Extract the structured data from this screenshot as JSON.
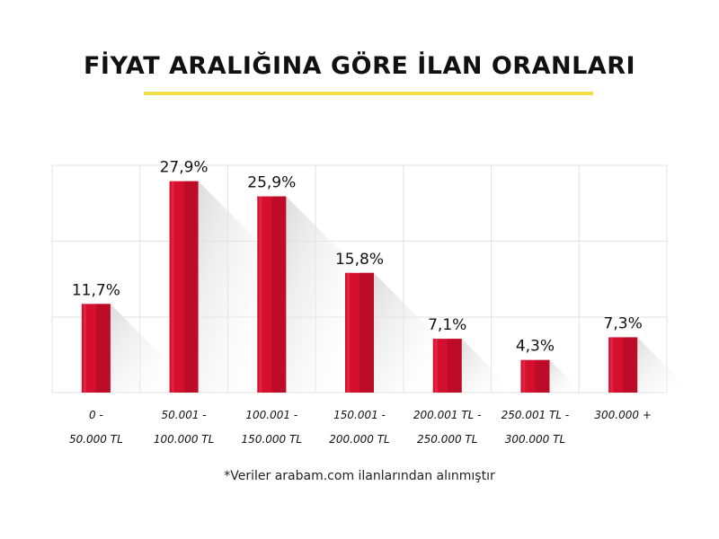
{
  "title": "FİYAT ARALIĞINA GÖRE İLAN ORANLARI",
  "footnote": "*Veriler arabam.com ilanlarından alınmıştır",
  "colors": {
    "bar": "#d50f2e",
    "bar_dark": "#a90b23",
    "accent": "#f3df4a",
    "grid": "#e2e2e2",
    "shadow": "#e6e6e6"
  },
  "chart_data": {
    "type": "bar",
    "categories": [
      [
        "0 -",
        "50.000 TL"
      ],
      [
        "50.001 -",
        "100.000 TL"
      ],
      [
        "100.001 -",
        "150.000 TL"
      ],
      [
        "150.001 -",
        "200.000 TL"
      ],
      [
        "200.001 TL -",
        "250.000 TL"
      ],
      [
        "250.001 TL -",
        "300.000 TL"
      ],
      [
        "300.000 +"
      ]
    ],
    "values": [
      11.7,
      27.9,
      25.9,
      15.8,
      7.1,
      4.3,
      7.3
    ],
    "value_labels": [
      "11,7%",
      "27,9%",
      "25,9%",
      "15,8%",
      "7,1%",
      "4,3%",
      "7,3%"
    ],
    "ylim": [
      0,
      30
    ],
    "grid": true
  }
}
